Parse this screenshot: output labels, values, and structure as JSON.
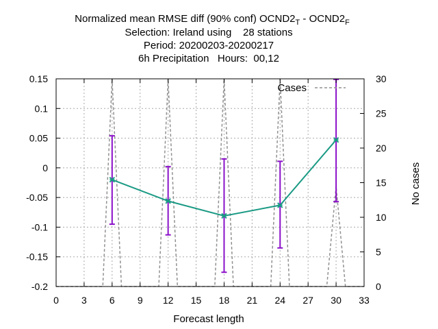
{
  "chart_data": {
    "type": "line",
    "title": {
      "line1_main": "Normalized mean RMSE diff (90% conf) OCND2",
      "line1_sub1": "T",
      "line1_mid": " - OCND2",
      "line1_sub2": "F",
      "line2": "Selection: Ireland using    28 stations",
      "line3": "Period: 20200203-20200217",
      "line4": "6h Precipitation   Hours:  00,12"
    },
    "xlabel": "Forecast length",
    "y2label": "No cases",
    "xlim": [
      0,
      33
    ],
    "ylim": [
      -0.2,
      0.15
    ],
    "y2lim": [
      0,
      30
    ],
    "x_ticks": [
      "0",
      "3",
      "6",
      "9",
      "12",
      "15",
      "18",
      "21",
      "24",
      "27",
      "30",
      "33"
    ],
    "y_ticks": [
      "-0.2",
      "-0.15",
      "-0.1",
      "-0.05",
      "0",
      "0.05",
      "0.1",
      "0.15"
    ],
    "y2_ticks": [
      "0",
      "5",
      "10",
      "15",
      "20",
      "25",
      "30"
    ],
    "grid": true,
    "legend": {
      "position": "top-right",
      "entries": [
        "Cases"
      ]
    },
    "series": [
      {
        "kind": "line-errorbar",
        "color": "#1a9a84",
        "errorbar_color": "#8a10c8",
        "x": [
          6,
          12,
          18,
          24,
          30
        ],
        "y": [
          -0.02,
          -0.056,
          -0.081,
          -0.063,
          0.047
        ],
        "y_low": [
          -0.095,
          -0.113,
          -0.176,
          -0.135,
          -0.057
        ],
        "y_high": [
          0.054,
          0.002,
          0.015,
          0.011,
          0.149
        ]
      },
      {
        "name": "Cases",
        "kind": "cases-dashed",
        "axis": "y2",
        "color": "#909090",
        "x": [
          0,
          5,
          6,
          7,
          11,
          12,
          13,
          17,
          18,
          19,
          23,
          24,
          25,
          29,
          30,
          31,
          33
        ],
        "y": [
          0,
          0,
          30,
          0,
          0,
          30,
          0,
          0,
          30,
          0,
          0,
          30,
          0,
          0,
          14.5,
          0,
          0
        ]
      }
    ]
  }
}
